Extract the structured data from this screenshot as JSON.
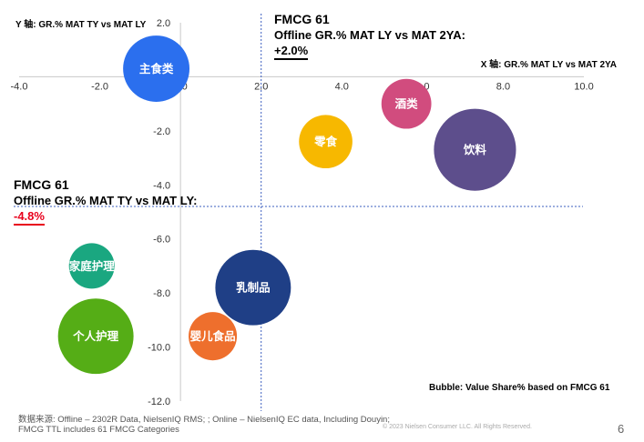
{
  "chart_data": {
    "type": "bubble",
    "y_axis_label": "Y 轴: GR.% MAT TY vs MAT LY",
    "x_axis_label": "X 轴: GR.%  MAT LY vs MAT 2YA",
    "xlim": [
      -4,
      10
    ],
    "ylim": [
      -12,
      2
    ],
    "x_ticks": [
      "-4.0",
      "-2.0",
      "0.0",
      "2.0",
      "4.0",
      "6.0",
      "8.0",
      "10.0"
    ],
    "y_ticks": [
      "2.0",
      "0.0",
      "-2.0",
      "-4.0",
      "-6.0",
      "-8.0",
      "-10.0",
      "-12.0"
    ],
    "reference_x": 2.0,
    "reference_y": -4.8,
    "bubble_size_note": "Bubble: Value Share% based on FMCG 61",
    "points": [
      {
        "label": "主食类",
        "x": -0.6,
        "y": 0.3,
        "size": 8.5,
        "color": "#2b6fee"
      },
      {
        "label": "酒类",
        "x": 5.6,
        "y": -1.0,
        "size": 4.8,
        "color": "#d14c7e"
      },
      {
        "label": "零食",
        "x": 3.6,
        "y": -2.4,
        "size": 5.5,
        "color": "#f7b800"
      },
      {
        "label": "饮料",
        "x": 7.3,
        "y": -2.7,
        "size": 13.0,
        "color": "#5d4e8c"
      },
      {
        "label": "家庭护理",
        "x": -2.2,
        "y": -7.0,
        "size": 4.0,
        "color": "#1aa780"
      },
      {
        "label": "乳制品",
        "x": 1.8,
        "y": -7.8,
        "size": 11.0,
        "color": "#1f3f86"
      },
      {
        "label": "个人护理",
        "x": -2.1,
        "y": -9.6,
        "size": 11.0,
        "color": "#55ad16"
      },
      {
        "label": "婴儿食品",
        "x": 0.8,
        "y": -9.6,
        "size": 4.5,
        "color": "#ee6f2d"
      }
    ]
  },
  "annotations": {
    "top": {
      "line1": "FMCG 61",
      "line2": "Offline GR.% MAT LY vs MAT 2YA:",
      "value": "+2.0%"
    },
    "left": {
      "line1": "FMCG 61",
      "line2": "Offline GR.% MAT TY vs MAT LY:",
      "value": "-4.8%"
    }
  },
  "footer": {
    "line1": "数据来源: Offline – 2302R Data, NielsenIQ RMS; ; Online – NielsenIQ EC data, Including Douyin;",
    "line2": "FMCG TTL includes 61 FMCG Categories",
    "copyright": "© 2023 Nielsen Consumer LLC. All Rights Reserved.",
    "page": "6"
  }
}
